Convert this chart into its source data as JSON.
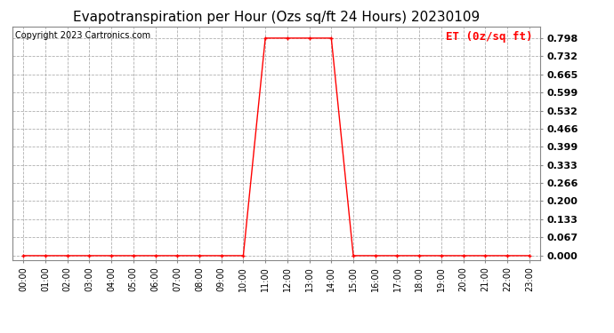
{
  "title": "Evapotranspiration per Hour (Ozs sq/ft 24 Hours) 20230109",
  "copyright_text": "Copyright 2023 Cartronics.com",
  "legend_label": "ET (0z/sq ft)",
  "legend_color": "#ff0000",
  "background_color": "#ffffff",
  "line_color": "#ff0000",
  "grid_color": "#b0b0b0",
  "hours": [
    0,
    1,
    2,
    3,
    4,
    5,
    6,
    7,
    8,
    9,
    10,
    11,
    12,
    13,
    14,
    15,
    16,
    17,
    18,
    19,
    20,
    21,
    22,
    23
  ],
  "values": [
    0.0,
    0.0,
    0.0,
    0.0,
    0.0,
    0.0,
    0.0,
    0.0,
    0.0,
    0.0,
    0.0,
    0.798,
    0.798,
    0.798,
    0.798,
    0.0,
    0.0,
    0.0,
    0.0,
    0.0,
    0.0,
    0.0,
    0.0,
    0.0
  ],
  "yticks": [
    0.0,
    0.067,
    0.133,
    0.2,
    0.266,
    0.333,
    0.399,
    0.466,
    0.532,
    0.599,
    0.665,
    0.732,
    0.798
  ],
  "xlabels": [
    "00:00",
    "01:00",
    "02:00",
    "03:00",
    "04:00",
    "05:00",
    "06:00",
    "07:00",
    "08:00",
    "09:00",
    "10:00",
    "11:00",
    "12:00",
    "13:00",
    "14:00",
    "15:00",
    "16:00",
    "17:00",
    "18:00",
    "19:00",
    "20:00",
    "21:00",
    "22:00",
    "23:00"
  ],
  "title_fontsize": 11,
  "copyright_fontsize": 7,
  "legend_fontsize": 9,
  "xlabel_fontsize": 7,
  "ylabel_fontsize": 8,
  "marker": "+"
}
